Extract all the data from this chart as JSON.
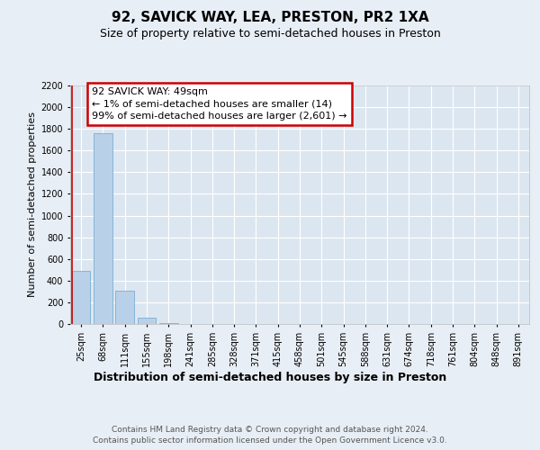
{
  "title": "92, SAVICK WAY, LEA, PRESTON, PR2 1XA",
  "subtitle": "Size of property relative to semi-detached houses in Preston",
  "xlabel": "Distribution of semi-detached houses by size in Preston",
  "ylabel": "Number of semi-detached properties",
  "categories": [
    "25sqm",
    "68sqm",
    "111sqm",
    "155sqm",
    "198sqm",
    "241sqm",
    "285sqm",
    "328sqm",
    "371sqm",
    "415sqm",
    "458sqm",
    "501sqm",
    "545sqm",
    "588sqm",
    "631sqm",
    "674sqm",
    "718sqm",
    "761sqm",
    "804sqm",
    "848sqm",
    "891sqm"
  ],
  "values": [
    490,
    1760,
    310,
    55,
    10,
    0,
    0,
    0,
    0,
    0,
    0,
    0,
    0,
    0,
    0,
    0,
    0,
    0,
    0,
    0,
    0
  ],
  "bar_color": "#b8d0e8",
  "bar_edge_color": "#7aafd4",
  "marker_line_color": "#cc0000",
  "annotation_text": "92 SAVICK WAY: 49sqm\n← 1% of semi-detached houses are smaller (14)\n99% of semi-detached houses are larger (2,601) →",
  "annotation_box_color": "#ffffff",
  "annotation_box_edge_color": "#cc0000",
  "ylim": [
    0,
    2200
  ],
  "yticks": [
    0,
    200,
    400,
    600,
    800,
    1000,
    1200,
    1400,
    1600,
    1800,
    2000,
    2200
  ],
  "bg_color": "#e8eef5",
  "plot_bg_color": "#dce6f0",
  "footer": "Contains HM Land Registry data © Crown copyright and database right 2024.\nContains public sector information licensed under the Open Government Licence v3.0.",
  "title_fontsize": 11,
  "subtitle_fontsize": 9,
  "xlabel_fontsize": 9,
  "ylabel_fontsize": 8,
  "tick_fontsize": 7,
  "annotation_fontsize": 8,
  "footer_fontsize": 6.5
}
